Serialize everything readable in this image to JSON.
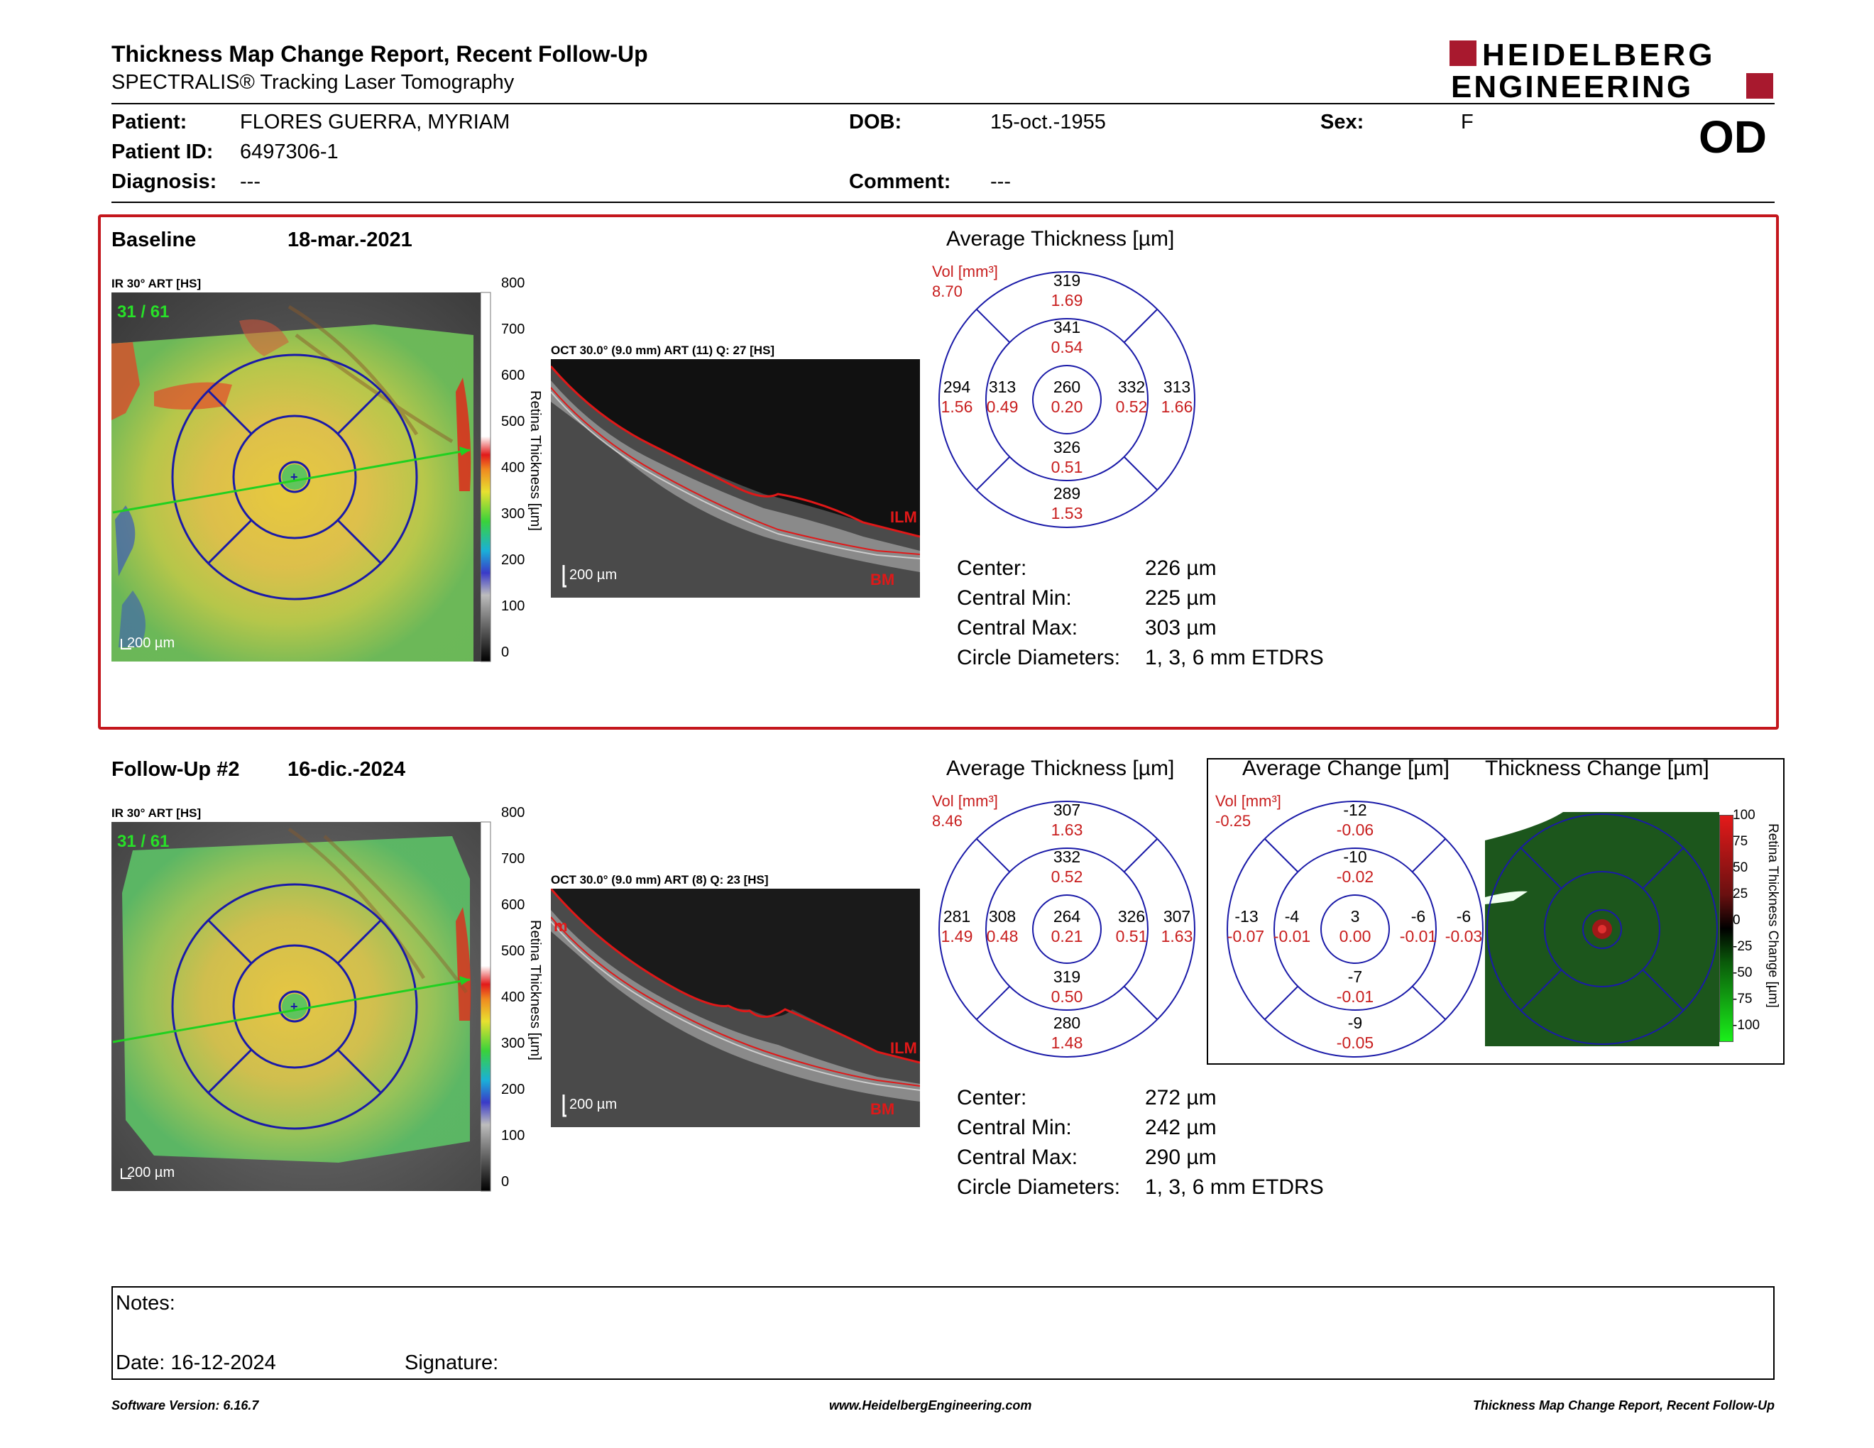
{
  "header": {
    "title": "Thickness Map Change Report, Recent Follow-Up",
    "subtitle": "SPECTRALIS® Tracking Laser Tomography",
    "logo_line1": "HEIDELBERG",
    "logo_line2": "ENGINEERING",
    "eye": "OD"
  },
  "patient": {
    "patient_label": "Patient:",
    "patient_value": "FLORES GUERRA, MYRIAM",
    "id_label": "Patient ID:",
    "id_value": "6497306-1",
    "diagnosis_label": "Diagnosis:",
    "diagnosis_value": "---",
    "dob_label": "DOB:",
    "dob_value": "15-oct.-1955",
    "comment_label": "Comment:",
    "comment_value": "---",
    "sex_label": "Sex:",
    "sex_value": "F"
  },
  "baseline": {
    "label": "Baseline",
    "date": "18-mar.-2021",
    "ir_caption": "IR 30° ART [HS]",
    "frame": "31 / 61",
    "scale": "200 µm",
    "oct_caption": "OCT 30.0° (9.0 mm) ART (11) Q: 27 [HS]",
    "oct_scale": "200 µm",
    "ilm": "ILM",
    "bm": "BM",
    "colorbar_ticks": [
      "800",
      "700",
      "600",
      "500",
      "400",
      "300",
      "200",
      "100",
      "0"
    ],
    "colorbar_label": "Retina Thickness [µm]",
    "grid_title": "Average Thickness [µm]",
    "vol_label": "Vol [mm³]",
    "vol_value": "8.70",
    "sectors": {
      "outer_sup": [
        "319",
        "1.69"
      ],
      "inner_sup": [
        "341",
        "0.54"
      ],
      "outer_temp": [
        "294",
        "1.56"
      ],
      "inner_temp": [
        "313",
        "0.49"
      ],
      "center": [
        "260",
        "0.20"
      ],
      "inner_nas": [
        "332",
        "0.52"
      ],
      "outer_nas": [
        "313",
        "1.66"
      ],
      "inner_inf": [
        "326",
        "0.51"
      ],
      "outer_inf": [
        "289",
        "1.53"
      ]
    },
    "stats": [
      {
        "label": "Center:",
        "value": "226 µm"
      },
      {
        "label": "Central Min:",
        "value": "225 µm"
      },
      {
        "label": "Central Max:",
        "value": "303 µm"
      },
      {
        "label": "Circle Diameters:",
        "value": "1, 3, 6 mm ETDRS"
      }
    ]
  },
  "followup": {
    "label": "Follow-Up #2",
    "date": "16-dic.-2024",
    "ir_caption": "IR 30° ART [HS]",
    "frame": "31 / 61",
    "scale": "200 µm",
    "oct_caption": "OCT 30.0° (9.0 mm) ART (8) Q: 23 [HS]",
    "oct_scale": "200 µm",
    "ilm": "ILM",
    "bm": "BM",
    "oct_left_mark": "m",
    "colorbar_ticks": [
      "800",
      "700",
      "600",
      "500",
      "400",
      "300",
      "200",
      "100",
      "0"
    ],
    "colorbar_label": "Retina Thickness [µm]",
    "grid_title": "Average Thickness [µm]",
    "vol_label": "Vol [mm³]",
    "vol_value": "8.46",
    "sectors": {
      "outer_sup": [
        "307",
        "1.63"
      ],
      "inner_sup": [
        "332",
        "0.52"
      ],
      "outer_temp": [
        "281",
        "1.49"
      ],
      "inner_temp": [
        "308",
        "0.48"
      ],
      "center": [
        "264",
        "0.21"
      ],
      "inner_nas": [
        "326",
        "0.51"
      ],
      "outer_nas": [
        "307",
        "1.63"
      ],
      "inner_inf": [
        "319",
        "0.50"
      ],
      "outer_inf": [
        "280",
        "1.48"
      ]
    },
    "stats": [
      {
        "label": "Center:",
        "value": "272 µm"
      },
      {
        "label": "Central Min:",
        "value": "242 µm"
      },
      {
        "label": "Central Max:",
        "value": "290 µm"
      },
      {
        "label": "Circle Diameters:",
        "value": "1, 3, 6 mm ETDRS"
      }
    ],
    "change_title": "Average Change [µm]",
    "change_vol_label": "Vol [mm³]",
    "change_vol_value": "-0.25",
    "change_sectors": {
      "outer_sup": [
        "-12",
        "-0.06"
      ],
      "inner_sup": [
        "-10",
        "-0.02"
      ],
      "outer_temp": [
        "-13",
        "-0.07"
      ],
      "inner_temp": [
        "-4",
        "-0.01"
      ],
      "center": [
        "3",
        "0.00"
      ],
      "inner_nas": [
        "-6",
        "-0.01"
      ],
      "outer_nas": [
        "-6",
        "-0.03"
      ],
      "inner_inf": [
        "-7",
        "-0.01"
      ],
      "outer_inf": [
        "-9",
        "-0.05"
      ]
    },
    "thickness_change_title": "Thickness Change [µm]",
    "change_bar_ticks": [
      "100",
      "75",
      "50",
      "25",
      "0",
      "-25",
      "-50",
      "-75",
      "-100"
    ],
    "change_bar_label": "Retina Thickness Change [µm]"
  },
  "notes": {
    "notes_label": "Notes:",
    "date_label": "Date: 16-12-2024",
    "signature_label": "Signature:"
  },
  "footer": {
    "left": "Software Version: 6.16.7",
    "center": "www.HeidelbergEngineering.com",
    "right": "Thickness Map Change Report, Recent Follow-Up"
  },
  "colors": {
    "accent_red": "#c81e1e",
    "grid_blue": "#1a1aa8",
    "box_red": "#c4161c",
    "logo_red": "#a8192e"
  }
}
